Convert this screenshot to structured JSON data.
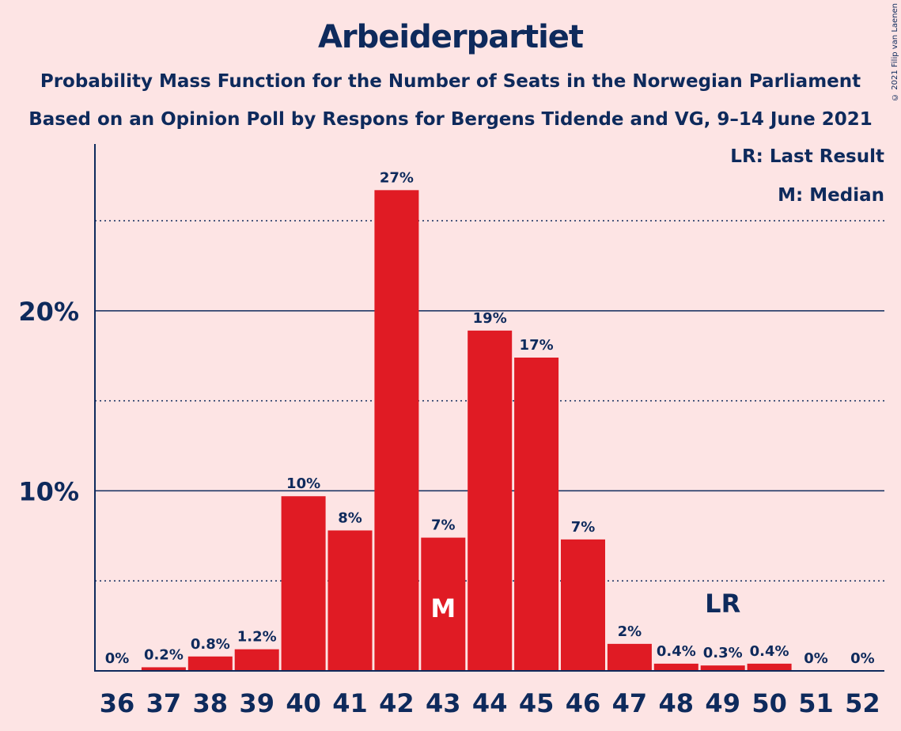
{
  "chart_data": {
    "type": "bar",
    "title": "Arbeiderpartiet",
    "subtitle": [
      "Probability Mass Function for the Number of Seats in the Norwegian Parliament",
      "Based on an Opinion Poll by Respons for Bergens Tidende and VG, 9–14 June 2021"
    ],
    "categories": [
      "36",
      "37",
      "38",
      "39",
      "40",
      "41",
      "42",
      "43",
      "44",
      "45",
      "46",
      "47",
      "48",
      "49",
      "50",
      "51",
      "52"
    ],
    "values": [
      0,
      0.2,
      0.8,
      1.2,
      9.7,
      7.8,
      26.7,
      7.4,
      18.9,
      17.4,
      7.3,
      1.5,
      0.4,
      0.3,
      0.4,
      0,
      0
    ],
    "data_labels": [
      "0%",
      "0.2%",
      "0.8%",
      "1.2%",
      "10%",
      "8%",
      "27%",
      "7%",
      "19%",
      "17%",
      "7%",
      "2%",
      "0.4%",
      "0.3%",
      "0.4%",
      "0%",
      "0%"
    ],
    "ylim": [
      0,
      29
    ],
    "y_ticks": [
      {
        "value": 10,
        "label": "10%"
      },
      {
        "value": 20,
        "label": "20%"
      }
    ],
    "y_minor_gridlines": [
      5,
      15,
      25
    ],
    "median_seat": "43",
    "median_marker": "M",
    "last_result_seat": "49",
    "last_result_marker": "LR",
    "legend": [
      "LR: Last Result",
      "M: Median"
    ],
    "legend_position": "top-right",
    "colors": {
      "bar": "#e01b24",
      "text": "#0e2a5c",
      "background": "#fde4e4",
      "grid": "#0e2a5c"
    }
  },
  "copyright": "© 2021 Filip van Laenen"
}
